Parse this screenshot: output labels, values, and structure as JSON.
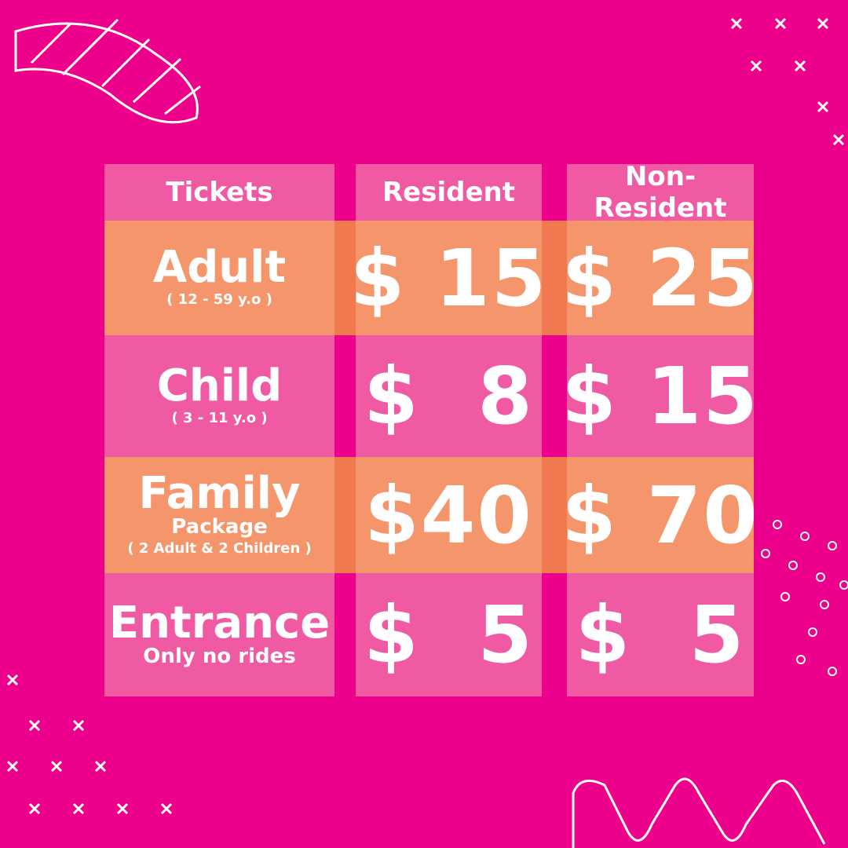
{
  "table": {
    "headers": [
      "Tickets",
      "Resident",
      "Non-Resident"
    ],
    "rows": [
      {
        "name": "Adult",
        "note": "( 12 - 59 y.o )",
        "resident": "$ 15",
        "non_resident": "$ 25"
      },
      {
        "name": "Child",
        "note": "( 3 - 11 y.o )",
        "resident": "$  8",
        "non_resident": "$ 15"
      },
      {
        "name": "Family",
        "sub": "Package",
        "note": "( 2 Adult & 2 Children )",
        "resident": "$40",
        "non_resident": "$ 70"
      },
      {
        "name": "Entrance",
        "sub": "Only no rides",
        "resident": "$  5",
        "non_resident": "$  5"
      }
    ]
  }
}
